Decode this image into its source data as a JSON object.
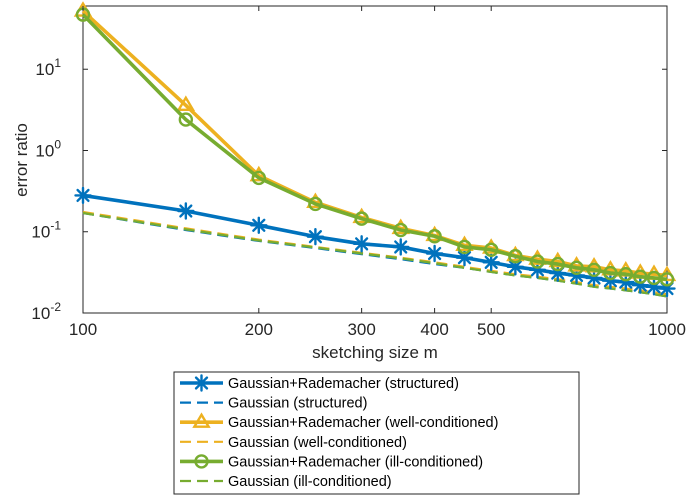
{
  "chart_data": {
    "type": "line",
    "xlabel": "sketching size m",
    "ylabel": "error ratio",
    "xscale": "log",
    "yscale": "log",
    "xlim": [
      100,
      1000
    ],
    "ylim": [
      0.01,
      60
    ],
    "grid": false,
    "legend_position": "below",
    "x_ticks": [
      {
        "value": 100,
        "label": "100"
      },
      {
        "value": 200,
        "label": "200"
      },
      {
        "value": 300,
        "label": "300"
      },
      {
        "value": 400,
        "label": "400"
      },
      {
        "value": 500,
        "label": "500"
      },
      {
        "value": 1000,
        "label": "1000"
      }
    ],
    "y_ticks": [
      {
        "value": 0.01,
        "base": "10",
        "exp": "-2"
      },
      {
        "value": 0.1,
        "base": "10",
        "exp": "-1"
      },
      {
        "value": 1,
        "base": "10",
        "exp": "0"
      },
      {
        "value": 10,
        "base": "10",
        "exp": "1"
      }
    ],
    "x": [
      100,
      150,
      200,
      250,
      300,
      350,
      400,
      450,
      500,
      550,
      600,
      650,
      700,
      750,
      800,
      850,
      900,
      950,
      1000
    ],
    "series": [
      {
        "name": "Gaussian+Rademacher (structured)",
        "color": "#0072BD",
        "dash": "solid",
        "marker": "asterisk",
        "values": [
          0.28,
          0.18,
          0.12,
          0.087,
          0.071,
          0.065,
          0.054,
          0.048,
          0.042,
          0.037,
          0.034,
          0.031,
          0.029,
          0.027,
          0.025,
          0.024,
          0.022,
          0.021,
          0.02
        ]
      },
      {
        "name": "Gaussian (structured)",
        "color": "#0072BD",
        "dash": "dashed",
        "marker": "none",
        "values": [
          0.17,
          0.105,
          0.077,
          0.063,
          0.053,
          0.046,
          0.04,
          0.036,
          0.032,
          0.029,
          0.027,
          0.025,
          0.023,
          0.021,
          0.02,
          0.019,
          0.018,
          0.017,
          0.016
        ]
      },
      {
        "name": "Gaussian+Rademacher (well-conditioned)",
        "color": "#EDB120",
        "dash": "solid",
        "marker": "triangle",
        "values": [
          52,
          3.6,
          0.49,
          0.23,
          0.15,
          0.11,
          0.09,
          0.068,
          0.063,
          0.051,
          0.046,
          0.043,
          0.038,
          0.037,
          0.034,
          0.033,
          0.031,
          0.03,
          0.029
        ]
      },
      {
        "name": "Gaussian (well-conditioned)",
        "color": "#EDB120",
        "dash": "dashed",
        "marker": "none",
        "values": [
          0.175,
          0.11,
          0.08,
          0.065,
          0.055,
          0.048,
          0.042,
          0.037,
          0.033,
          0.03,
          0.028,
          0.026,
          0.024,
          0.022,
          0.021,
          0.02,
          0.019,
          0.018,
          0.017
        ]
      },
      {
        "name": "Gaussian+Rademacher (ill-conditioned)",
        "color": "#77AC30",
        "dash": "solid",
        "marker": "circle",
        "values": [
          47,
          2.4,
          0.46,
          0.22,
          0.145,
          0.105,
          0.088,
          0.065,
          0.06,
          0.05,
          0.043,
          0.04,
          0.036,
          0.034,
          0.031,
          0.03,
          0.028,
          0.027,
          0.026
        ]
      },
      {
        "name": "Gaussian (ill-conditioned)",
        "color": "#77AC30",
        "dash": "dashed",
        "marker": "none",
        "values": [
          0.17,
          0.107,
          0.078,
          0.064,
          0.054,
          0.047,
          0.041,
          0.036,
          0.032,
          0.029,
          0.027,
          0.025,
          0.023,
          0.021,
          0.02,
          0.019,
          0.018,
          0.017,
          0.016
        ]
      }
    ]
  }
}
